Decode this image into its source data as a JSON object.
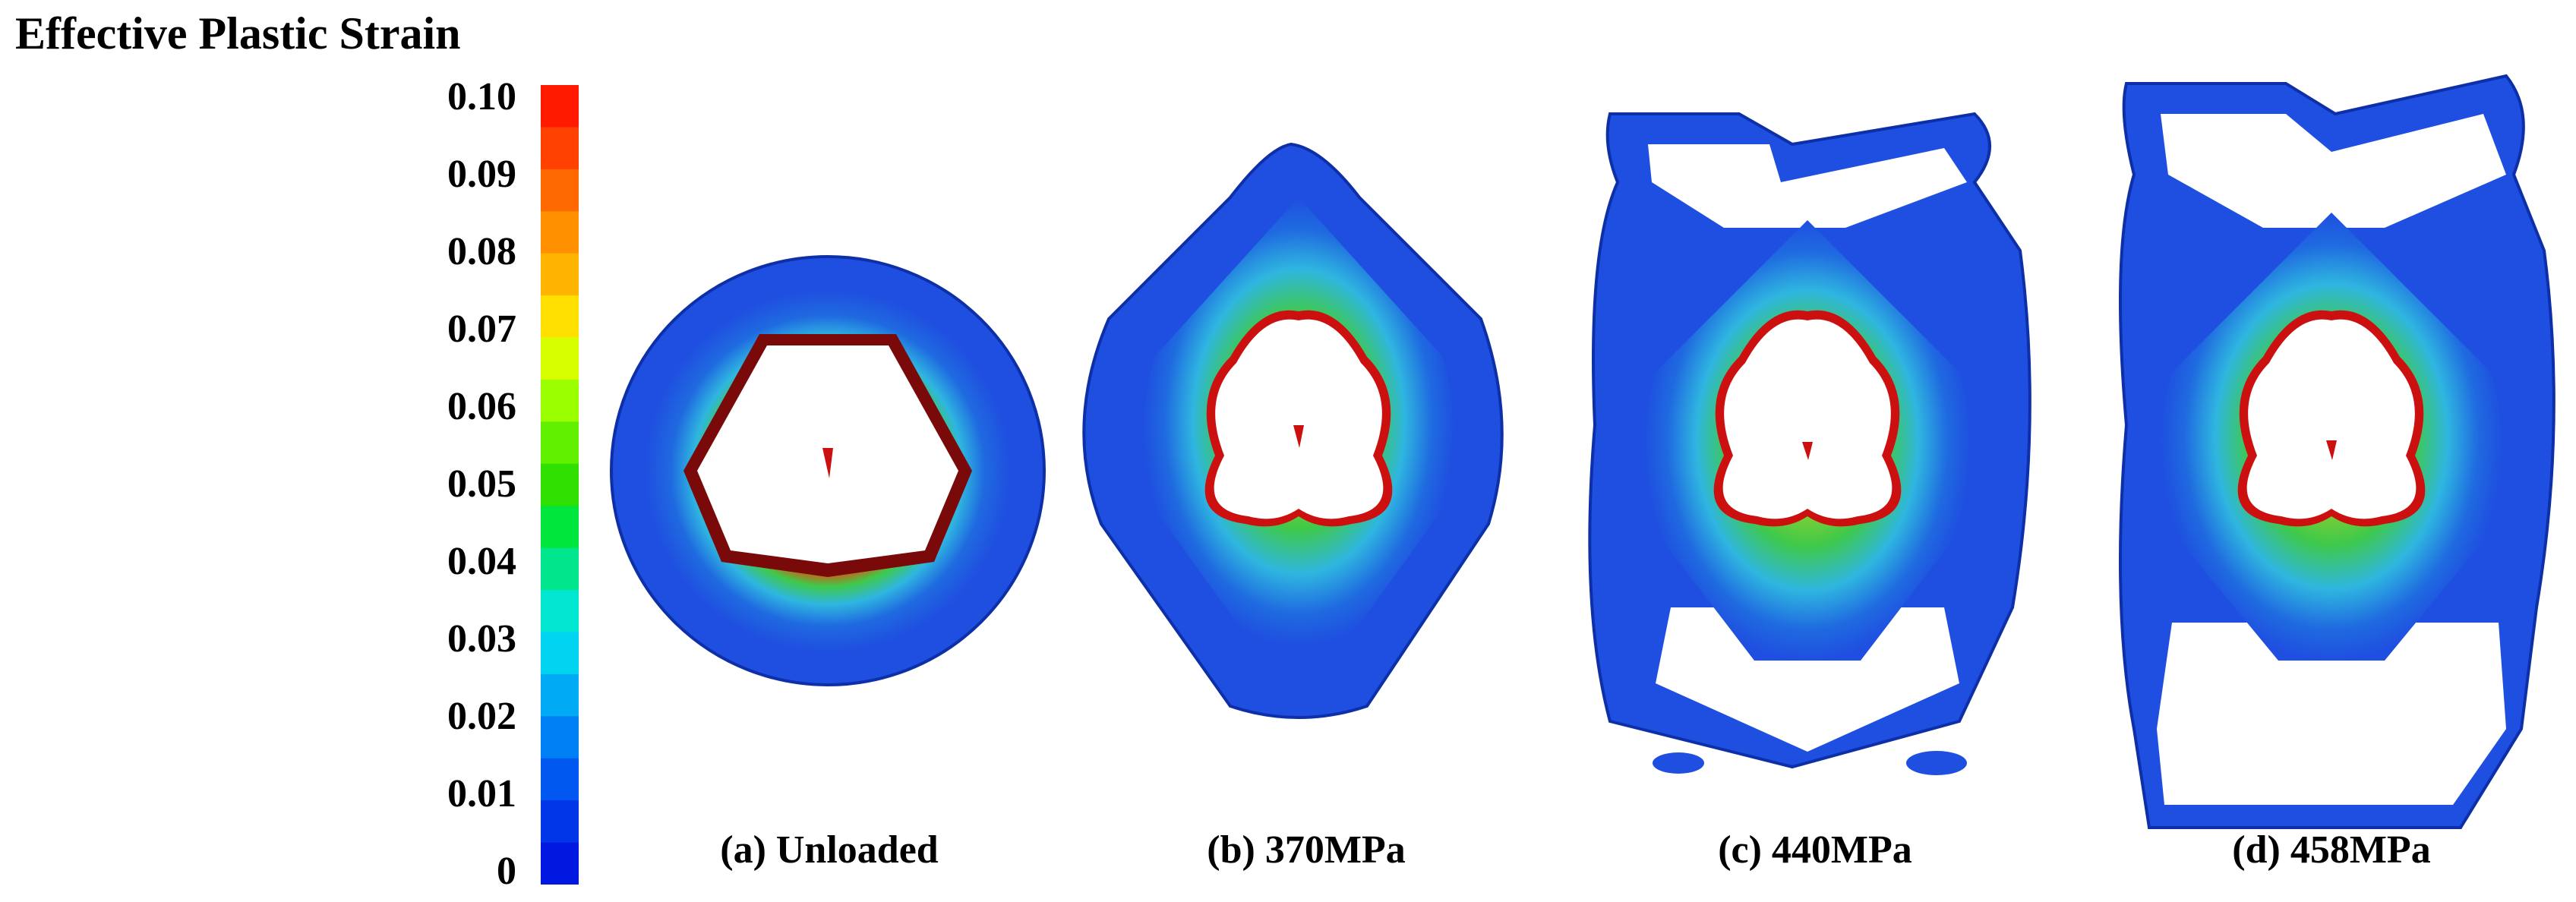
{
  "legend": {
    "title": "Effective Plastic Strain",
    "ticks": [
      "0.10",
      "0.09",
      "0.08",
      "0.07",
      "0.06",
      "0.05",
      "0.04",
      "0.03",
      "0.02",
      "0.01",
      "0"
    ],
    "colors_top_to_bottom": [
      "#ff1a00",
      "#ff4000",
      "#ff6a00",
      "#ff9000",
      "#ffb400",
      "#ffe000",
      "#d8ff00",
      "#9cff00",
      "#60f000",
      "#30e000",
      "#00e63c",
      "#00e68c",
      "#00e6d0",
      "#00d4f0",
      "#00aaf5",
      "#0080f5",
      "#0058f0",
      "#0036e8",
      "#0018e0"
    ]
  },
  "panels": [
    {
      "label": "(a) Unloaded",
      "stress": "Unloaded"
    },
    {
      "label": "(b) 370MPa",
      "stress": "370MPa"
    },
    {
      "label": "(c) 440MPa",
      "stress": "440MPa"
    },
    {
      "label": "(d) 458MPa",
      "stress": "458MPa"
    }
  ],
  "palette": {
    "outer_blue": "#1f4fe0",
    "dark_blue": "#0d2fa8",
    "cyan": "#2fb6e0",
    "green": "#3fc94a",
    "yellow": "#d8d820",
    "red": "#cc1010",
    "dark_red": "#7a0a0a"
  }
}
